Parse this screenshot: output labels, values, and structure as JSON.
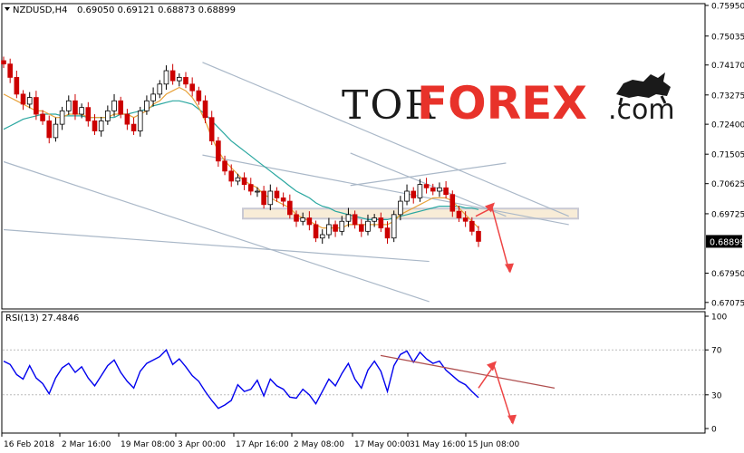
{
  "symbol_info": {
    "caption": "NZDUSD,H4",
    "ohlc": "0.69050 0.69121 0.68873 0.68899"
  },
  "rsi_info": {
    "caption": "RSI(13) 27.4846"
  },
  "watermark": {
    "tor": "TOR",
    "forex": "FOREX",
    "dotcom": ".com",
    "icon": "bull-bear-icon"
  },
  "current_price": "0.68899",
  "colors": {
    "candle_up": "#000000",
    "candle_down": "#cc0000",
    "ma_fast": "#e8a23a",
    "ma_slow": "#2aa7a0",
    "rsi_line": "#0000ee",
    "channel": "#aab8c8",
    "zone_fill": "#f5e6c9",
    "zone_border": "#c9c9d4",
    "trend_rsi": "#b05050",
    "arrow": "#ee4444",
    "watermark_dark": "#1a1a1a",
    "watermark_red": "#e8322a"
  },
  "chart_data": [
    {
      "type": "candlestick",
      "title": "NZDUSD,H4",
      "ylim": [
        0.6707,
        0.7595
      ],
      "yticks": [
        "0.75950",
        "0.75035",
        "0.74170",
        "0.73275",
        "0.72400",
        "0.71505",
        "0.70625",
        "0.69725",
        "0.68850",
        "0.67950",
        "0.67075"
      ],
      "xticks": [
        "16 Feb 2018",
        "2 Mar 16:00",
        "19 Mar 08:00",
        "3 Apr 00:00",
        "17 Apr 16:00",
        "2 May 08:00",
        "17 May 00:00",
        "31 May 16:00",
        "15 Jun 08:00"
      ],
      "closes": [
        0.742,
        0.738,
        0.733,
        0.73,
        0.732,
        0.727,
        0.725,
        0.72,
        0.724,
        0.728,
        0.731,
        0.727,
        0.729,
        0.725,
        0.722,
        0.725,
        0.728,
        0.731,
        0.727,
        0.724,
        0.722,
        0.728,
        0.731,
        0.733,
        0.736,
        0.74,
        0.737,
        0.738,
        0.736,
        0.734,
        0.731,
        0.726,
        0.719,
        0.713,
        0.71,
        0.707,
        0.708,
        0.706,
        0.704,
        0.704,
        0.7,
        0.704,
        0.702,
        0.701,
        0.697,
        0.695,
        0.696,
        0.694,
        0.69,
        0.691,
        0.694,
        0.692,
        0.695,
        0.697,
        0.694,
        0.692,
        0.695,
        0.696,
        0.693,
        0.69,
        0.697,
        0.701,
        0.704,
        0.702,
        0.706,
        0.705,
        0.704,
        0.705,
        0.703,
        0.698,
        0.696,
        0.695,
        0.692,
        0.689
      ],
      "ma_fast": [
        0.733,
        0.732,
        0.731,
        0.73,
        0.729,
        0.728,
        0.728,
        0.727,
        0.726,
        0.726,
        0.727,
        0.727,
        0.727,
        0.726,
        0.726,
        0.726,
        0.726,
        0.727,
        0.727,
        0.727,
        0.726,
        0.727,
        0.728,
        0.73,
        0.731,
        0.733,
        0.734,
        0.735,
        0.734,
        0.732,
        0.729,
        0.725,
        0.72,
        0.716,
        0.713,
        0.711,
        0.709,
        0.707,
        0.706,
        0.705,
        0.703,
        0.702,
        0.701,
        0.7,
        0.699,
        0.697,
        0.696,
        0.695,
        0.694,
        0.693,
        0.693,
        0.693,
        0.693,
        0.694,
        0.694,
        0.694,
        0.694,
        0.694,
        0.694,
        0.694,
        0.695,
        0.697,
        0.698,
        0.699,
        0.7,
        0.701,
        0.702,
        0.702,
        0.702,
        0.701,
        0.699,
        0.697,
        0.695,
        0.693
      ],
      "ma_slow": [
        0.7225,
        0.7235,
        0.7245,
        0.7255,
        0.726,
        0.7265,
        0.727,
        0.727,
        0.727,
        0.7265,
        0.7265,
        0.7265,
        0.7265,
        0.726,
        0.726,
        0.726,
        0.726,
        0.726,
        0.727,
        0.727,
        0.7275,
        0.728,
        0.7285,
        0.7295,
        0.73,
        0.7305,
        0.731,
        0.731,
        0.7305,
        0.73,
        0.7285,
        0.727,
        0.725,
        0.723,
        0.721,
        0.719,
        0.7175,
        0.716,
        0.7145,
        0.713,
        0.7115,
        0.71,
        0.7085,
        0.707,
        0.7055,
        0.704,
        0.703,
        0.702,
        0.7005,
        0.6995,
        0.699,
        0.698,
        0.6975,
        0.697,
        0.6965,
        0.696,
        0.6955,
        0.6955,
        0.6955,
        0.6955,
        0.696,
        0.6965,
        0.697,
        0.6975,
        0.698,
        0.6985,
        0.699,
        0.6995,
        0.6995,
        0.6995,
        0.6995,
        0.699,
        0.699,
        0.6985
      ],
      "resistance_zone": [
        0.6958,
        0.6988
      ],
      "channels": [
        [
          [
            0.7425,
            0.6965
          ],
          [
            0.7148,
            0.694
          ]
        ],
        [
          [
            0.7128,
            0.671
          ],
          [
            0.6925,
            0.683
          ]
        ],
        [
          [
            0.7154,
            0.6965
          ],
          [
            0.7057,
            0.7124
          ]
        ]
      ],
      "forecast_path": [
        0.6965,
        0.699,
        0.68
      ],
      "current_price": 0.68899
    },
    {
      "type": "line",
      "title": "RSI(13) 27.4846",
      "ylim": [
        0,
        100
      ],
      "levels": [
        30,
        70
      ],
      "yticks": [
        "100",
        "70",
        "30",
        "0"
      ],
      "values": [
        60,
        57,
        48,
        44,
        56,
        45,
        40,
        31,
        45,
        54,
        58,
        50,
        55,
        45,
        38,
        47,
        56,
        61,
        50,
        42,
        36,
        51,
        58,
        61,
        64,
        70,
        57,
        62,
        55,
        47,
        42,
        33,
        25,
        18,
        21,
        25,
        39,
        33,
        35,
        43,
        29,
        44,
        38,
        35,
        28,
        27,
        35,
        30,
        22,
        33,
        44,
        38,
        49,
        58,
        44,
        36,
        52,
        60,
        51,
        33,
        56,
        66,
        69,
        59,
        68,
        62,
        58,
        60,
        52,
        47,
        42,
        39,
        33,
        27.48
      ],
      "trendline": [
        65,
        36
      ],
      "forecast_path": [
        36,
        56,
        5
      ]
    }
  ]
}
